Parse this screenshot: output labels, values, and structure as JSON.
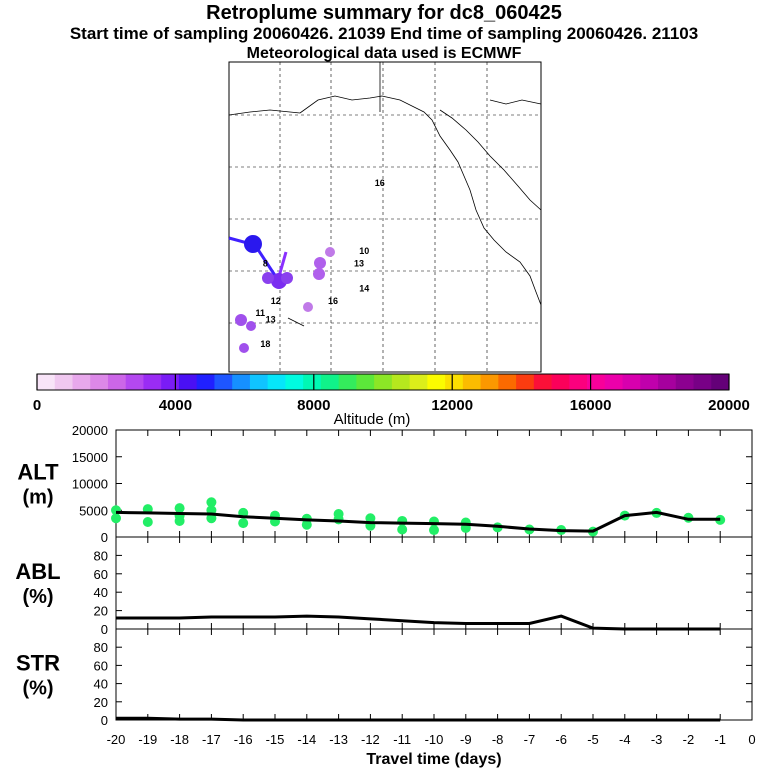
{
  "header": {
    "title": "Retroplume summary for dc8_060425",
    "sampling_line": "Start time of sampling 20060426. 21039     End time of sampling 20060426. 21103",
    "met_line": "Meteorological data used is ECMWF"
  },
  "map": {
    "day_labels": [
      {
        "text": "16",
        "lon": -131,
        "lat": 55
      },
      {
        "text": "10",
        "lon": -134,
        "lat": 44
      },
      {
        "text": "8",
        "lon": -153,
        "lat": 42
      },
      {
        "text": "13",
        "lon": -135,
        "lat": 42
      },
      {
        "text": "14",
        "lon": -134,
        "lat": 38
      },
      {
        "text": "12",
        "lon": -151,
        "lat": 36
      },
      {
        "text": "16",
        "lon": -140,
        "lat": 36
      },
      {
        "text": "11",
        "lon": -154,
        "lat": 34
      },
      {
        "text": "13",
        "lon": -152,
        "lat": 33
      },
      {
        "text": "18",
        "lon": -153,
        "lat": 29
      }
    ]
  },
  "colorbar": {
    "title": "Altitude (m)",
    "tick_labels": [
      "0",
      "4000",
      "8000",
      "12000",
      "16000",
      "20000"
    ],
    "colors": [
      "#f8e4f8",
      "#f0c8f0",
      "#e8a8ec",
      "#dc88e8",
      "#cc66e8",
      "#b448f0",
      "#9a2cf4",
      "#7a1cf6",
      "#4a10f4",
      "#2020ff",
      "#1e56ff",
      "#1690ff",
      "#10c4ff",
      "#06e6fa",
      "#00fce0",
      "#00f8b4",
      "#10f28a",
      "#34ec5c",
      "#5ce83a",
      "#8ce626",
      "#b6e81e",
      "#dcee1a",
      "#fcfc00",
      "#fce000",
      "#fcbc00",
      "#fc9800",
      "#fc6a00",
      "#fc3c10",
      "#fc1038",
      "#fc005a",
      "#fc007e",
      "#f8009a",
      "#ec00aa",
      "#d800ae",
      "#c000ac",
      "#a6009e",
      "#8c0090",
      "#780086",
      "#640078"
    ]
  },
  "chart_data": [
    {
      "type": "line",
      "panel": "altitude",
      "ylabel": "ALT\n(m)",
      "ylabel_line1": "ALT",
      "ylabel_line2": "(m)",
      "ylim": [
        0,
        20000
      ],
      "yticks": [
        "0",
        "5000",
        "10000",
        "15000",
        "20000"
      ],
      "x": [
        -20,
        -19,
        -18,
        -17,
        -16,
        -15,
        -14,
        -13,
        -12,
        -11,
        -10,
        -9,
        -8,
        -7,
        -6,
        -5,
        -4,
        -3,
        -2,
        -1
      ],
      "median": [
        4600,
        4500,
        4400,
        4300,
        3800,
        3500,
        3200,
        3000,
        2700,
        2600,
        2500,
        2400,
        2000,
        1500,
        1200,
        1100,
        4000,
        4600,
        3300,
        3300
      ],
      "scatter": [
        [
          -20,
          5000
        ],
        [
          -20,
          3500
        ],
        [
          -19,
          5200
        ],
        [
          -19,
          2800
        ],
        [
          -18,
          5400
        ],
        [
          -18,
          4000
        ],
        [
          -18,
          3000
        ],
        [
          -17,
          6500
        ],
        [
          -17,
          5000
        ],
        [
          -17,
          3500
        ],
        [
          -16,
          4500
        ],
        [
          -16,
          2600
        ],
        [
          -15,
          4000
        ],
        [
          -15,
          2900
        ],
        [
          -14,
          3400
        ],
        [
          -14,
          2300
        ],
        [
          -13,
          4300
        ],
        [
          -13,
          3300
        ],
        [
          -12,
          3500
        ],
        [
          -12,
          2100
        ],
        [
          -11,
          3000
        ],
        [
          -11,
          1400
        ],
        [
          -10,
          2900
        ],
        [
          -10,
          1300
        ],
        [
          -9,
          2700
        ],
        [
          -9,
          1700
        ],
        [
          -8,
          1800
        ],
        [
          -7,
          1400
        ],
        [
          -6,
          1300
        ],
        [
          -5,
          1000
        ],
        [
          -4,
          4000
        ],
        [
          -3,
          4500
        ],
        [
          -2,
          3600
        ],
        [
          -1,
          3200
        ]
      ]
    },
    {
      "type": "line",
      "panel": "abl",
      "ylabel": "ABL\n(%)",
      "ylabel_line1": "ABL",
      "ylabel_line2": "(%)",
      "ylim": [
        0,
        100
      ],
      "yticks": [
        "0",
        "20",
        "40",
        "60",
        "80"
      ],
      "x": [
        -20,
        -19,
        -18,
        -17,
        -16,
        -15,
        -14,
        -13,
        -12,
        -11,
        -10,
        -9,
        -8,
        -7,
        -6,
        -5,
        -4,
        -3,
        -2,
        -1
      ],
      "values": [
        12,
        12,
        12,
        13,
        13,
        13,
        14,
        13,
        11,
        9,
        7,
        6,
        6,
        6,
        14,
        1,
        0,
        0,
        0,
        0
      ]
    },
    {
      "type": "line",
      "panel": "str",
      "ylabel": "STR\n(%)",
      "ylabel_line1": "STR",
      "ylabel_line2": "(%)",
      "ylim": [
        0,
        100
      ],
      "yticks": [
        "0",
        "20",
        "40",
        "60",
        "80"
      ],
      "x": [
        -20,
        -19,
        -18,
        -17,
        -16,
        -15,
        -14,
        -13,
        -12,
        -11,
        -10,
        -9,
        -8,
        -7,
        -6,
        -5,
        -4,
        -3,
        -2,
        -1
      ],
      "values": [
        2,
        2,
        1,
        1,
        0,
        0,
        0,
        0,
        0,
        0,
        0,
        0,
        0,
        0,
        0,
        0,
        0,
        0,
        0,
        0
      ]
    }
  ],
  "xaxis": {
    "xlim": [
      -20,
      0
    ],
    "tick_labels": [
      "-20",
      "-19",
      "-18",
      "-17",
      "-16",
      "-15",
      "-14",
      "-13",
      "-12",
      "-11",
      "-10",
      "-9",
      "-8",
      "-7",
      "-6",
      "-5",
      "-4",
      "-3",
      "-2",
      "-1",
      "0"
    ],
    "xlabel": "Travel time (days)"
  }
}
